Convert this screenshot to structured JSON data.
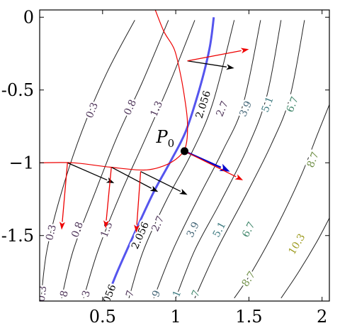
{
  "chart_data": {
    "type": "contour",
    "xlim": [
      0.07,
      2.05
    ],
    "ylim": [
      -1.95,
      0.05
    ],
    "xticks": [
      {
        "value": 0.5,
        "label": "0.5"
      },
      {
        "value": 1.0,
        "label": "1"
      },
      {
        "value": 1.5,
        "label": "1.5"
      },
      {
        "value": 2.0,
        "label": "2"
      }
    ],
    "yticks": [
      {
        "value": 0.0,
        "label": "0"
      },
      {
        "value": -0.5,
        "label": "-0.5"
      },
      {
        "value": -1.0,
        "label": "−1"
      },
      {
        "value": -1.5,
        "label": "-1.5"
      }
    ],
    "contours": [
      {
        "level": 0.3,
        "label": "0.3",
        "color": "#4d3358",
        "points": [
          [
            0.08,
            -1.93
          ],
          [
            0.12,
            -1.6
          ],
          [
            0.22,
            -1.2
          ],
          [
            0.36,
            -0.78
          ],
          [
            0.53,
            -0.38
          ],
          [
            0.72,
            -0.02
          ]
        ],
        "labels": [
          {
            "text": "0.3",
            "x": 0.43,
            "y": -0.64
          },
          {
            "text": "0.3",
            "x": 0.15,
            "y": -1.48
          },
          {
            "text": "0.3",
            "x": 0.09,
            "y": -1.9
          }
        ]
      },
      {
        "level": 0.8,
        "label": "0.8",
        "color": "#4d3358",
        "points": [
          [
            0.22,
            -1.93
          ],
          [
            0.3,
            -1.6
          ],
          [
            0.45,
            -1.2
          ],
          [
            0.6,
            -0.82
          ],
          [
            0.77,
            -0.45
          ],
          [
            0.95,
            -0.02
          ]
        ],
        "labels": [
          {
            "text": "0.8",
            "x": 0.69,
            "y": -0.62
          },
          {
            "text": "0.8",
            "x": 0.33,
            "y": -1.46
          },
          {
            "text": "8",
            "x": 0.24,
            "y": -1.9
          }
        ]
      },
      {
        "level": 1.3,
        "label": "1.3",
        "color": "#4d3358",
        "points": [
          [
            0.37,
            -1.93
          ],
          [
            0.47,
            -1.6
          ],
          [
            0.62,
            -1.22
          ],
          [
            0.79,
            -0.84
          ],
          [
            0.96,
            -0.45
          ],
          [
            1.13,
            -0.02
          ]
        ],
        "labels": [
          {
            "text": "1.3",
            "x": 0.87,
            "y": -0.63
          },
          {
            "text": "1.3",
            "x": 0.53,
            "y": -1.46
          },
          {
            "text": "3",
            "x": 0.39,
            "y": -1.9
          }
        ]
      },
      {
        "level": 2.056,
        "label": "2.056",
        "color": "#5555ee",
        "highlight": true,
        "points": [
          [
            0.53,
            -1.93
          ],
          [
            0.6,
            -1.75
          ],
          [
            0.72,
            -1.48
          ],
          [
            0.85,
            -1.2
          ],
          [
            0.97,
            -0.98
          ],
          [
            1.07,
            -0.78
          ],
          [
            1.16,
            -0.5
          ],
          [
            1.23,
            -0.22
          ],
          [
            1.26,
            0.0
          ]
        ],
        "labels": [
          {
            "text": "2.056",
            "x": 1.19,
            "y": -0.6
          },
          {
            "text": "2.056",
            "x": 0.76,
            "y": -1.5
          },
          {
            "text": "056",
            "x": 0.55,
            "y": -1.9
          }
        ]
      },
      {
        "level": 2.7,
        "label": "2.7",
        "color": "#4d3358",
        "points": [
          [
            0.68,
            -1.93
          ],
          [
            0.78,
            -1.6
          ],
          [
            0.94,
            -1.25
          ],
          [
            1.1,
            -0.95
          ],
          [
            1.25,
            -0.6
          ],
          [
            1.4,
            -0.02
          ]
        ],
        "labels": [
          {
            "text": "2.7",
            "x": 1.32,
            "y": -0.63
          },
          {
            "text": "2.7",
            "x": 0.88,
            "y": -1.42
          },
          {
            "text": "7",
            "x": 0.69,
            "y": -1.9
          }
        ]
      },
      {
        "level": 3.9,
        "label": "3.9",
        "color": "#446677",
        "points": [
          [
            0.85,
            -1.93
          ],
          [
            0.98,
            -1.6
          ],
          [
            1.15,
            -1.25
          ],
          [
            1.32,
            -0.92
          ],
          [
            1.46,
            -0.6
          ],
          [
            1.58,
            -0.02
          ]
        ],
        "labels": [
          {
            "text": "3.9",
            "x": 1.48,
            "y": -0.63
          },
          {
            "text": "3.9",
            "x": 1.12,
            "y": -1.46
          },
          {
            "text": "9",
            "x": 0.87,
            "y": -1.9
          }
        ]
      },
      {
        "level": 5.1,
        "label": "5.1",
        "color": "#3d7a80",
        "points": [
          [
            1.0,
            -1.93
          ],
          [
            1.13,
            -1.6
          ],
          [
            1.3,
            -1.28
          ],
          [
            1.48,
            -0.92
          ],
          [
            1.62,
            -0.55
          ],
          [
            1.72,
            -0.02
          ]
        ],
        "labels": [
          {
            "text": "5.1",
            "x": 1.63,
            "y": -0.6
          },
          {
            "text": "5.1",
            "x": 1.3,
            "y": -1.46
          },
          {
            "text": "1",
            "x": 1.01,
            "y": -1.9
          }
        ]
      },
      {
        "level": 6.7,
        "label": "6.7",
        "color": "#3f866a",
        "points": [
          [
            1.13,
            -1.93
          ],
          [
            1.28,
            -1.6
          ],
          [
            1.48,
            -1.22
          ],
          [
            1.65,
            -0.88
          ],
          [
            1.78,
            -0.55
          ],
          [
            1.88,
            -0.02
          ]
        ],
        "labels": [
          {
            "text": "6.7",
            "x": 1.8,
            "y": -0.6
          },
          {
            "text": "6.7",
            "x": 1.5,
            "y": -1.46
          },
          {
            "text": "7",
            "x": 1.14,
            "y": -1.9
          }
        ]
      },
      {
        "level": 8.7,
        "label": "8.7",
        "color": "#6e8e45",
        "points": [
          [
            1.4,
            -1.93
          ],
          [
            1.52,
            -1.75
          ],
          [
            1.7,
            -1.42
          ],
          [
            1.86,
            -1.08
          ],
          [
            1.97,
            -0.8
          ],
          [
            2.05,
            -0.6
          ]
        ],
        "labels": [
          {
            "text": "8.7",
            "x": 1.94,
            "y": -0.98
          },
          {
            "text": "8.7",
            "x": 1.5,
            "y": -1.8
          }
        ]
      },
      {
        "level": 10.3,
        "label": "10.3",
        "color": "#9c9a1c",
        "points": [
          [
            1.72,
            -1.93
          ],
          [
            1.84,
            -1.75
          ],
          [
            1.96,
            -1.55
          ],
          [
            2.05,
            -1.38
          ]
        ],
        "labels": [
          {
            "text": "10.3",
            "x": 1.83,
            "y": -1.56
          }
        ]
      }
    ],
    "red_curve": {
      "color": "#ee0000",
      "points": [
        [
          0.07,
          -1.0
        ],
        [
          0.3,
          -1.0
        ],
        [
          0.55,
          -1.03
        ],
        [
          0.78,
          -1.05
        ],
        [
          0.92,
          -1.02
        ],
        [
          1.02,
          -0.96
        ],
        [
          1.07,
          -0.88
        ],
        [
          1.08,
          -0.72
        ],
        [
          1.06,
          -0.55
        ],
        [
          1.03,
          -0.38
        ],
        [
          0.99,
          -0.22
        ],
        [
          0.92,
          -0.1
        ],
        [
          0.86,
          0.05
        ]
      ]
    },
    "point": {
      "name": "P",
      "subscript": "0",
      "x": 1.06,
      "y": -0.92
    },
    "arrows": [
      {
        "color": "#000000",
        "width": 1.3,
        "from": [
          0.26,
          -1.0
        ],
        "to": [
          0.58,
          -1.14
        ]
      },
      {
        "color": "#ee0000",
        "width": 1.3,
        "from": [
          0.26,
          -1.0
        ],
        "to": [
          0.22,
          -1.46
        ]
      },
      {
        "color": "#000000",
        "width": 1.3,
        "from": [
          0.56,
          -1.03
        ],
        "to": [
          0.88,
          -1.2
        ]
      },
      {
        "color": "#ee0000",
        "width": 1.3,
        "from": [
          0.56,
          -1.03
        ],
        "to": [
          0.52,
          -1.45
        ]
      },
      {
        "color": "#000000",
        "width": 1.3,
        "from": [
          0.76,
          -1.06
        ],
        "to": [
          1.08,
          -1.22
        ]
      },
      {
        "color": "#ee0000",
        "width": 1.3,
        "from": [
          0.76,
          -1.06
        ],
        "to": [
          0.73,
          -1.48
        ]
      },
      {
        "color": "#000000",
        "width": 1.3,
        "from": [
          1.08,
          -0.3
        ],
        "to": [
          1.4,
          -0.35
        ]
      },
      {
        "color": "#ee0000",
        "width": 1.3,
        "from": [
          1.08,
          -0.3
        ],
        "to": [
          1.5,
          -0.22
        ]
      },
      {
        "color": "#0000cc",
        "width": 2.4,
        "from": [
          1.06,
          -0.92
        ],
        "to": [
          1.37,
          -1.06
        ]
      },
      {
        "color": "#ee0000",
        "width": 1.3,
        "from": [
          1.06,
          -0.92
        ],
        "to": [
          1.46,
          -1.12
        ]
      }
    ]
  }
}
